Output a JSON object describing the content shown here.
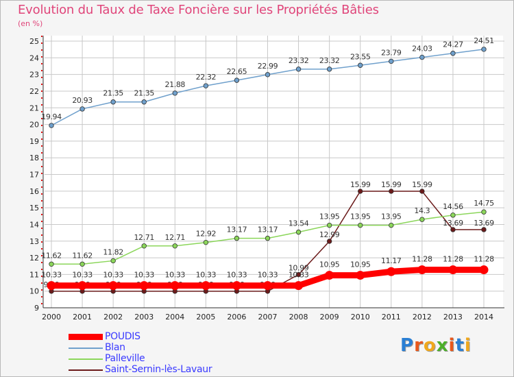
{
  "header": {
    "title": "Evolution du Taux de Taxe Foncière sur les Propriétés Bâties",
    "unit": "(en %)"
  },
  "logo": {
    "text": "Proxiti",
    "letters": [
      {
        "ch": "P",
        "color": "#2a7fd4"
      },
      {
        "ch": "r",
        "color": "#e8581c"
      },
      {
        "ch": "o",
        "color": "#f0a81c"
      },
      {
        "ch": "x",
        "color": "#4caf2a"
      },
      {
        "ch": "i",
        "color": "#e8581c"
      },
      {
        "ch": "t",
        "color": "#2a7fd4"
      },
      {
        "ch": "i",
        "color": "#f0a81c"
      }
    ]
  },
  "chart_data": {
    "type": "line",
    "title": "Evolution du Taux de Taxe Foncière sur les Propriétés Bâties",
    "ylabel": "(en %)",
    "xlabel": "",
    "x": [
      "2000",
      "2001",
      "2002",
      "2003",
      "2004",
      "2005",
      "2006",
      "2007",
      "2008",
      "2009",
      "2010",
      "2011",
      "2012",
      "2013",
      "2014"
    ],
    "ylim": [
      9,
      25
    ],
    "yticks": [
      9,
      10,
      11,
      12,
      13,
      14,
      15,
      16,
      17,
      18,
      19,
      20,
      21,
      22,
      23,
      24,
      25
    ],
    "grid": true,
    "legend_position": "bottom-left",
    "series": [
      {
        "name": "Saint-Sernin-lès-Lavaur",
        "color": "#6b1a1a",
        "values": [
          9.99,
          9.99,
          9.99,
          9.99,
          9.99,
          9.99,
          9.99,
          9.99,
          10.99,
          12.99,
          15.99,
          15.99,
          15.99,
          13.69,
          13.69
        ],
        "labels": [
          "9.99",
          "9.99",
          "9.99",
          "9.99",
          "9.99",
          "9.99",
          "9.99",
          "9.99",
          "10.99",
          "12.99",
          "15.99",
          "15.99",
          "15.99",
          "13.69",
          "13.69"
        ]
      },
      {
        "name": "Palleville",
        "color": "#8bd65a",
        "values": [
          11.62,
          11.62,
          11.82,
          12.71,
          12.71,
          12.92,
          13.17,
          13.17,
          13.54,
          13.95,
          13.95,
          13.95,
          14.3,
          14.56,
          14.75
        ],
        "labels": [
          "11.62",
          "11.62",
          "11.82",
          "12.71",
          "12.71",
          "12.92",
          "13.17",
          "13.17",
          "13.54",
          "13.95",
          "13.95",
          "13.95",
          "14.3",
          "14.56",
          "14.75"
        ]
      },
      {
        "name": "Blan",
        "color": "#6fa0cc",
        "values": [
          19.94,
          20.93,
          21.35,
          21.35,
          21.88,
          22.32,
          22.65,
          22.99,
          23.32,
          23.32,
          23.55,
          23.79,
          24.03,
          24.27,
          24.51
        ],
        "labels": [
          "19.94",
          "20.93",
          "21.35",
          "21.35",
          "21.88",
          "22.32",
          "22.65",
          "22.99",
          "23.32",
          "23.32",
          "23.55",
          "23.79",
          "24.03",
          "24.27",
          "24.51"
        ]
      },
      {
        "name": "POUDIS",
        "color": "#ff0000",
        "values": [
          10.33,
          10.33,
          10.33,
          10.33,
          10.33,
          10.33,
          10.33,
          10.33,
          10.33,
          10.95,
          10.95,
          11.17,
          11.28,
          11.28,
          11.28
        ],
        "labels": [
          "10.33",
          "10.33",
          "10.33",
          "10.33",
          "10.33",
          "10.33",
          "10.33",
          "10.33",
          "10.33",
          "10.95",
          "10.95",
          "11.17",
          "11.28",
          "11.28",
          "11.28"
        ]
      }
    ],
    "legend": [
      "POUDIS",
      "Blan",
      "Palleville",
      "Saint-Sernin-lès-Lavaur"
    ]
  }
}
